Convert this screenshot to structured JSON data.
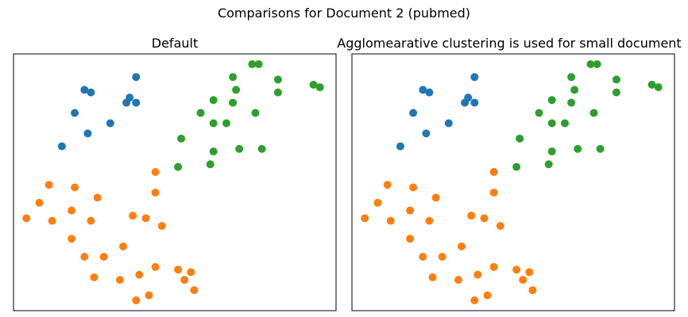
{
  "figure": {
    "title": "Comparisons for Document 2 (pubmed)"
  },
  "colors": {
    "cluster_0": "#1f77b4",
    "cluster_1": "#ff7f0e",
    "cluster_2": "#2ca02c"
  },
  "chart_data": [
    {
      "type": "scatter",
      "title": "Default",
      "xlabel": "",
      "ylabel": "",
      "xticks": false,
      "yticks": false,
      "grid": false,
      "xlim": [
        0,
        100
      ],
      "ylim": [
        0,
        100
      ],
      "series": [
        {
          "color": "#1f77b4",
          "points": [
            [
              22,
              86
            ],
            [
              24,
              85
            ],
            [
              35,
              81
            ],
            [
              38,
              91
            ],
            [
              36,
              83
            ],
            [
              38,
              81
            ],
            [
              19,
              77
            ],
            [
              30,
              73
            ],
            [
              23,
              69
            ],
            [
              15,
              64
            ]
          ]
        },
        {
          "color": "#ff7f0e",
          "points": [
            [
              44,
              54
            ],
            [
              11,
              49
            ],
            [
              19,
              48
            ],
            [
              26,
              44
            ],
            [
              44,
              46
            ],
            [
              8,
              42
            ],
            [
              18,
              39
            ],
            [
              4,
              36
            ],
            [
              12,
              35
            ],
            [
              24,
              35
            ],
            [
              37,
              37
            ],
            [
              41,
              36
            ],
            [
              46,
              33
            ],
            [
              18,
              28
            ],
            [
              34,
              25
            ],
            [
              22,
              21
            ],
            [
              28,
              21
            ],
            [
              44,
              17
            ],
            [
              51,
              16
            ],
            [
              55,
              15
            ],
            [
              25,
              13
            ],
            [
              33,
              12
            ],
            [
              39,
              14
            ],
            [
              53,
              12
            ],
            [
              56,
              8
            ],
            [
              38,
              4
            ],
            [
              42,
              6
            ]
          ]
        },
        {
          "color": "#2ca02c",
          "points": [
            [
              74,
              96
            ],
            [
              76,
              96
            ],
            [
              68,
              91
            ],
            [
              82,
              90
            ],
            [
              93,
              88
            ],
            [
              95,
              87
            ],
            [
              69,
              86
            ],
            [
              82,
              85
            ],
            [
              62,
              82
            ],
            [
              68,
              81
            ],
            [
              58,
              77
            ],
            [
              75,
              77
            ],
            [
              66,
              73
            ],
            [
              52,
              67
            ],
            [
              62,
              73
            ],
            [
              70,
              63
            ],
            [
              62,
              62
            ],
            [
              77,
              63
            ],
            [
              61,
              57
            ],
            [
              51,
              56
            ]
          ]
        }
      ]
    },
    {
      "type": "scatter",
      "title": "Agglomearative clustering is used for small document",
      "xlabel": "",
      "ylabel": "",
      "xticks": false,
      "yticks": false,
      "grid": false,
      "xlim": [
        0,
        100
      ],
      "ylim": [
        0,
        100
      ],
      "series": [
        {
          "color": "#1f77b4",
          "points": [
            [
              22,
              86
            ],
            [
              24,
              85
            ],
            [
              35,
              81
            ],
            [
              38,
              91
            ],
            [
              36,
              83
            ],
            [
              38,
              81
            ],
            [
              19,
              77
            ],
            [
              30,
              73
            ],
            [
              23,
              69
            ],
            [
              15,
              64
            ]
          ]
        },
        {
          "color": "#ff7f0e",
          "points": [
            [
              44,
              54
            ],
            [
              11,
              49
            ],
            [
              19,
              48
            ],
            [
              26,
              44
            ],
            [
              44,
              46
            ],
            [
              8,
              42
            ],
            [
              18,
              39
            ],
            [
              4,
              36
            ],
            [
              12,
              35
            ],
            [
              24,
              35
            ],
            [
              37,
              37
            ],
            [
              41,
              36
            ],
            [
              46,
              33
            ],
            [
              18,
              28
            ],
            [
              34,
              25
            ],
            [
              22,
              21
            ],
            [
              28,
              21
            ],
            [
              44,
              17
            ],
            [
              51,
              16
            ],
            [
              55,
              15
            ],
            [
              25,
              13
            ],
            [
              33,
              12
            ],
            [
              39,
              14
            ],
            [
              53,
              12
            ],
            [
              56,
              8
            ],
            [
              38,
              4
            ],
            [
              42,
              6
            ]
          ]
        },
        {
          "color": "#2ca02c",
          "points": [
            [
              74,
              96
            ],
            [
              76,
              96
            ],
            [
              68,
              91
            ],
            [
              82,
              90
            ],
            [
              93,
              88
            ],
            [
              95,
              87
            ],
            [
              69,
              86
            ],
            [
              82,
              85
            ],
            [
              62,
              82
            ],
            [
              68,
              81
            ],
            [
              58,
              77
            ],
            [
              75,
              77
            ],
            [
              66,
              73
            ],
            [
              52,
              67
            ],
            [
              62,
              73
            ],
            [
              70,
              63
            ],
            [
              62,
              62
            ],
            [
              77,
              63
            ],
            [
              61,
              57
            ],
            [
              51,
              56
            ]
          ]
        }
      ]
    }
  ]
}
